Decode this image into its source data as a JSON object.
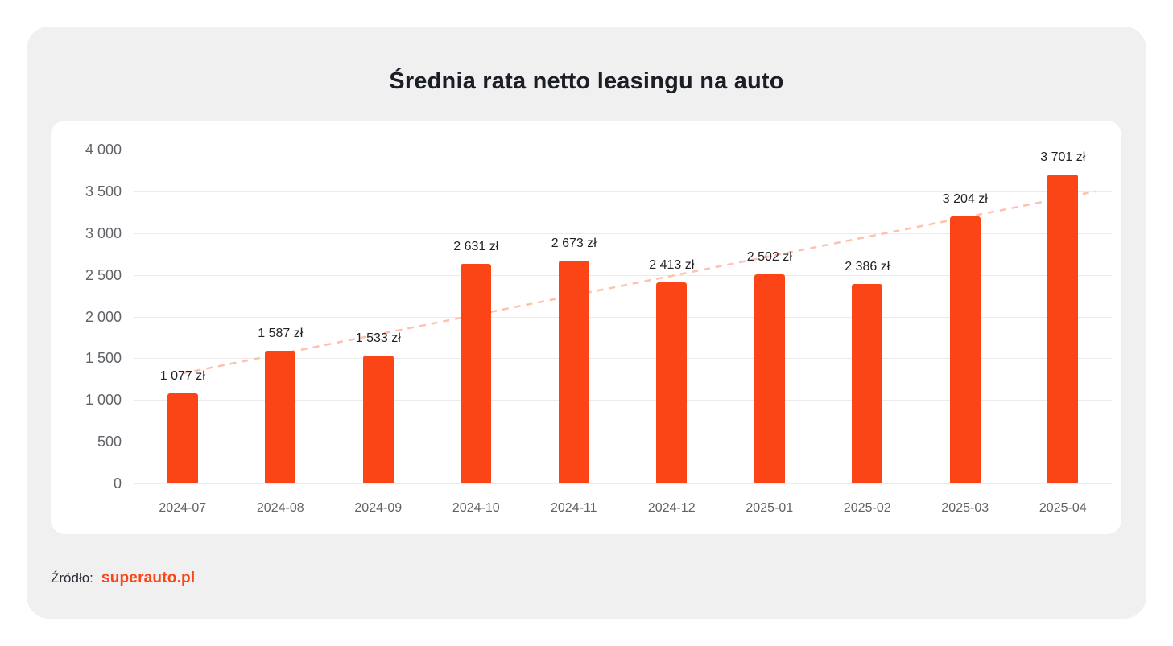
{
  "title": "Średnia rata netto leasingu na auto",
  "footer": {
    "source_label": "Źródło:",
    "source_name": "superauto.pl"
  },
  "colors": {
    "bar": "#fc4516",
    "trend": "#ffc0ae",
    "card_bg": "#f0f0f1",
    "panel_bg": "#ffffff",
    "grid": "#ebebeb",
    "title_text": "#1c1e26",
    "axis_text": "#5f6368",
    "value_text": "#23242a",
    "accent": "#fc4516"
  },
  "chart_data": {
    "type": "bar",
    "title": "Średnia rata netto leasingu na auto",
    "categories": [
      "2024-07",
      "2024-08",
      "2024-09",
      "2024-10",
      "2024-11",
      "2024-12",
      "2025-01",
      "2025-02",
      "2025-03",
      "2025-04"
    ],
    "values": [
      1077,
      1587,
      1533,
      2631,
      2673,
      2413,
      2502,
      2386,
      3204,
      3701
    ],
    "value_labels": [
      "1 077 zł",
      "1 587 zł",
      "1 533 zł",
      "2 631 zł",
      "2 673 zł",
      "2 413 zł",
      "2 502 zł",
      "2 386 zł",
      "3 204 zł",
      "3 701 zł"
    ],
    "xlabel": "",
    "ylabel": "",
    "ylim": [
      0,
      4000
    ],
    "ytick_step": 500,
    "ytick_labels": [
      "0",
      "500",
      "1 000",
      "1 500",
      "2 000",
      "2 500",
      "3 000",
      "3 500",
      "4 000"
    ],
    "grid": true,
    "legend": false,
    "trendline": {
      "type": "linear",
      "style": "dashed"
    }
  }
}
